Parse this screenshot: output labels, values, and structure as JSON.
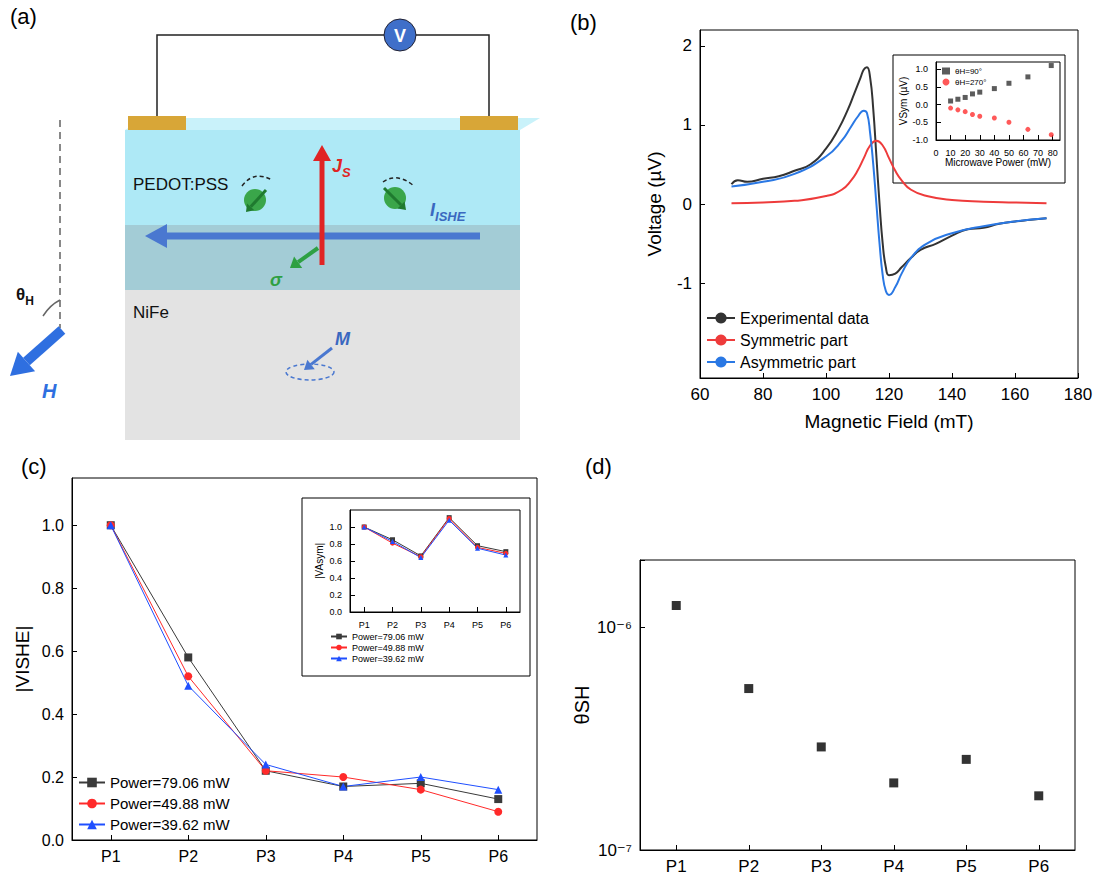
{
  "diagram": {
    "panel": "(a)",
    "meter": "V",
    "top_layer": "PEDOT:PSS",
    "bottom_layer": "NiFe",
    "field": {
      "text": "H"
    },
    "angle": {
      "text": "θ",
      "sub": "H"
    },
    "spin_current": {
      "text": "J",
      "sub": "S"
    },
    "charge_current": {
      "text": "I",
      "sub": "ISHE"
    },
    "spin": {
      "text": "σ"
    },
    "magnetization": {
      "text": "M"
    }
  },
  "chart_data": [
    {
      "type": "line",
      "title": "(b)",
      "x_label": "Magnetic Field (mT)",
      "y_label": "Voltage (µV)",
      "xlim": [
        60,
        180
      ],
      "xticks": [
        60,
        80,
        100,
        120,
        140,
        160,
        180
      ],
      "ylim": [
        -2.2,
        2.2
      ],
      "yticks": [
        -1,
        0,
        1,
        2
      ],
      "legend": "lower left",
      "series": [
        {
          "name": "Experimental data",
          "color": "#333333",
          "line_style": "solid",
          "x": [
            70,
            72,
            75,
            80,
            85,
            90,
            95,
            100,
            104,
            107,
            109,
            111,
            112,
            113,
            114,
            115,
            116,
            117,
            118,
            119,
            120,
            122,
            124,
            127,
            130,
            135,
            140,
            145,
            150,
            155,
            160,
            165,
            170
          ],
          "values": [
            0.25,
            0.3,
            0.28,
            0.32,
            0.35,
            0.42,
            0.5,
            0.7,
            0.95,
            1.2,
            1.4,
            1.6,
            1.7,
            1.73,
            1.6,
            1.2,
            0.6,
            0.0,
            -0.5,
            -0.8,
            -0.9,
            -0.88,
            -0.8,
            -0.68,
            -0.58,
            -0.5,
            -0.4,
            -0.32,
            -0.3,
            -0.25,
            -0.22,
            -0.2,
            -0.18
          ]
        },
        {
          "name": "Symmetric part",
          "color": "#ee3b3b",
          "line_style": "solid",
          "x": [
            70,
            80,
            90,
            100,
            105,
            108,
            110,
            112,
            114,
            116,
            118,
            120,
            122,
            124,
            127,
            132,
            140,
            150,
            160,
            170
          ],
          "values": [
            0.01,
            0.02,
            0.04,
            0.1,
            0.18,
            0.3,
            0.42,
            0.58,
            0.74,
            0.8,
            0.74,
            0.58,
            0.42,
            0.3,
            0.18,
            0.1,
            0.05,
            0.03,
            0.02,
            0.01
          ]
        },
        {
          "name": "Asymmetric part",
          "color": "#2a78e4",
          "line_style": "solid",
          "x": [
            70,
            80,
            90,
            100,
            105,
            108,
            110,
            112,
            113,
            114,
            115,
            116,
            117,
            118,
            119,
            120,
            122,
            124,
            127,
            132,
            140,
            150,
            160,
            170
          ],
          "values": [
            0.22,
            0.28,
            0.38,
            0.6,
            0.8,
            0.98,
            1.1,
            1.18,
            1.15,
            0.9,
            0.5,
            0,
            -0.5,
            -0.9,
            -1.1,
            -1.15,
            -1.05,
            -0.88,
            -0.68,
            -0.5,
            -0.37,
            -0.28,
            -0.22,
            -0.18
          ]
        }
      ],
      "inset": {
        "type": "scatter",
        "x_label": "Microwave Power (mW)",
        "y_label": "VSym (µV)",
        "xlim": [
          0,
          85
        ],
        "xticks": [
          0,
          10,
          20,
          30,
          40,
          50,
          60,
          70,
          80
        ],
        "ylim": [
          -1.0,
          1.2
        ],
        "yticks": [
          {
            "value": -1.0,
            "label": "-1.0"
          },
          -0.5,
          {
            "value": 0,
            "label": "0.0"
          },
          0.5,
          {
            "value": 1.0,
            "label": "1.0"
          }
        ],
        "legend": "upper left",
        "series": [
          {
            "name": "θH=90°",
            "color": "#333333",
            "marker": "square",
            "x": [
              10,
              15,
              20,
              25,
              30,
              40,
              50,
              63,
              79
            ],
            "values": [
              0.1,
              0.15,
              0.2,
              0.3,
              0.35,
              0.45,
              0.6,
              0.78,
              1.1
            ]
          },
          {
            "name": "θH=270°",
            "color": "#ff3030",
            "marker": "circle",
            "x": [
              10,
              15,
              20,
              25,
              30,
              40,
              50,
              63,
              79
            ],
            "values": [
              -0.1,
              -0.15,
              -0.2,
              -0.28,
              -0.33,
              -0.38,
              -0.5,
              -0.7,
              -0.85
            ]
          }
        ]
      }
    },
    {
      "type": "line",
      "title": "(c)",
      "y_label": "|VISHE|",
      "categories": [
        "P1",
        "P2",
        "P3",
        "P4",
        "P5",
        "P6"
      ],
      "ylim": [
        0,
        1.15
      ],
      "yticks": [
        {
          "value": 0,
          "label": "0.0"
        },
        0.2,
        0.4,
        0.6,
        0.8,
        {
          "value": 1.0,
          "label": "1.0"
        }
      ],
      "legend": "lower left",
      "series": [
        {
          "name": "Power=79.06 mW",
          "color": "#3a3a3a",
          "marker": "square",
          "line_style": "solid",
          "values": [
            1.0,
            0.58,
            0.22,
            0.17,
            0.18,
            0.13
          ]
        },
        {
          "name": "Power=49.88 mW",
          "color": "#ff2a2a",
          "marker": "circle",
          "line_style": "solid",
          "values": [
            1.0,
            0.52,
            0.22,
            0.2,
            0.16,
            0.09
          ]
        },
        {
          "name": "Power=39.62 mW",
          "color": "#1f4fff",
          "marker": "triangle",
          "line_style": "solid",
          "values": [
            1.0,
            0.49,
            0.24,
            0.17,
            0.2,
            0.16
          ]
        }
      ],
      "inset": {
        "type": "line",
        "y_label": "|VAsym|",
        "categories": [
          "P1",
          "P2",
          "P3",
          "P4",
          "P5",
          "P6"
        ],
        "ylim": [
          0,
          1.2
        ],
        "yticks": [
          {
            "value": 0,
            "label": "0.0"
          },
          0.2,
          0.4,
          0.6,
          0.8,
          {
            "value": 1.0,
            "label": "1.0"
          }
        ],
        "legend": "bottom",
        "series": [
          {
            "name": "Power=79.06 mW",
            "color": "#3a3a3a",
            "marker": "square",
            "line_style": "solid",
            "values": [
              1.0,
              0.85,
              0.66,
              1.11,
              0.78,
              0.71
            ]
          },
          {
            "name": "Power=49.88 mW",
            "color": "#ff2a2a",
            "marker": "circle",
            "line_style": "solid",
            "values": [
              1.0,
              0.81,
              0.65,
              1.1,
              0.76,
              0.69
            ]
          },
          {
            "name": "Power=39.62 mW",
            "color": "#1f4fff",
            "marker": "triangle",
            "line_style": "solid",
            "values": [
              1.0,
              0.83,
              0.64,
              1.08,
              0.75,
              0.67
            ]
          }
        ]
      }
    },
    {
      "type": "scatter",
      "title": "(d)",
      "y_label": "θSH",
      "categories": [
        "P1",
        "P2",
        "P3",
        "P4",
        "P5",
        "P6"
      ],
      "log": "y",
      "ylim": [
        1e-07,
        2e-06
      ],
      "yticks": [
        {
          "value": 1e-07,
          "label": "10⁻⁷"
        },
        {
          "value": 1e-06,
          "label": "10⁻⁶"
        }
      ],
      "color": "#000000",
      "marker": "square",
      "values": [
        1.25e-06,
        5.3e-07,
        2.9e-07,
        2e-07,
        2.55e-07,
        1.75e-07
      ]
    }
  ]
}
